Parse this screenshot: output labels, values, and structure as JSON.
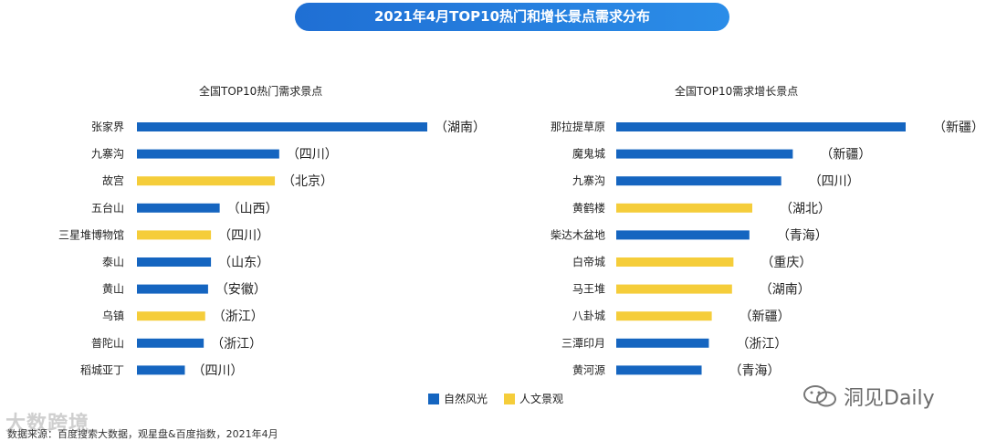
{
  "page_title": "2021年4月TOP10热门和增长景点需求分布",
  "legend": [
    {
      "label": "自然风光",
      "color": "#1565c0"
    },
    {
      "label": "人文景观",
      "color": "#f5cd3a"
    }
  ],
  "source": "数据来源：百度搜索大数据，观星盘&百度指数，2021年4月",
  "watermarks": {
    "left": "大数跨境",
    "right": "洞见Daily"
  },
  "chart_data": [
    {
      "type": "bar",
      "orientation": "horizontal",
      "title": "全国TOP10热门需求景点",
      "categories": [
        "张家界",
        "九寨沟",
        "故宫",
        "五台山",
        "三星堆博物馆",
        "泰山",
        "黄山",
        "乌镇",
        "普陀山",
        "稻城亚丁"
      ],
      "regions": [
        "（湖南）",
        "（四川）",
        "（北京）",
        "（山西）",
        "（四川）",
        "（山东）",
        "（安徽）",
        "（浙江）",
        "（浙江）",
        "（四川）"
      ],
      "types": [
        "自然风光",
        "自然风光",
        "人文景观",
        "自然风光",
        "人文景观",
        "自然风光",
        "自然风光",
        "人文景观",
        "自然风光",
        "自然风光"
      ],
      "values": [
        100,
        49,
        47.5,
        28.5,
        25.5,
        25.5,
        24.5,
        23.5,
        23,
        16.5
      ],
      "xlim": [
        0,
        100
      ]
    },
    {
      "type": "bar",
      "orientation": "horizontal",
      "title": "全国TOP10需求增长景点",
      "categories": [
        "那拉提草原",
        "魔鬼城",
        "九寨沟",
        "黄鹤楼",
        "柴达木盆地",
        "白帝城",
        "马王堆",
        "八卦城",
        "三潭印月",
        "黄河源"
      ],
      "regions": [
        "（新疆）",
        "（新疆）",
        "（四川）",
        "（湖北）",
        "（青海）",
        "（重庆）",
        "（湖南）",
        "（新疆）",
        "（浙江）",
        "（青海）"
      ],
      "types": [
        "自然风光",
        "自然风光",
        "自然风光",
        "人文景观",
        "自然风光",
        "人文景观",
        "人文景观",
        "人文景观",
        "自然风光",
        "自然风光"
      ],
      "values": [
        100,
        61,
        57,
        47,
        46,
        40.5,
        40,
        33,
        32,
        29.5
      ],
      "xlim": [
        0,
        100
      ]
    }
  ]
}
